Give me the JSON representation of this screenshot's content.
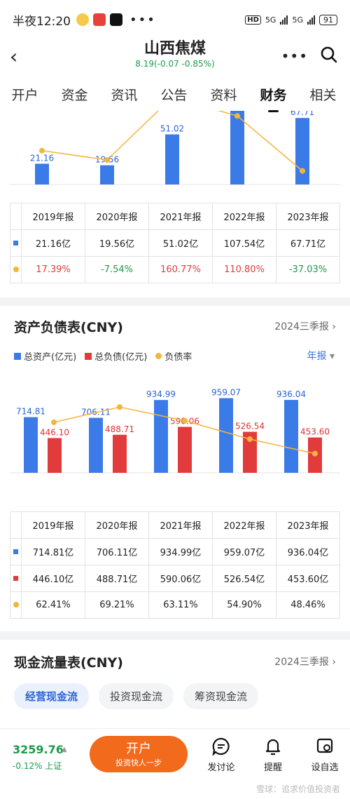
{
  "status_bar": {
    "time": "半夜12:20",
    "hd": "HD",
    "net1": "5G",
    "net2": "5G",
    "battery": "91"
  },
  "header": {
    "title": "山西焦煤",
    "quote": "8.19(-0.07 -0.85%)"
  },
  "tabs": [
    "开户",
    "资金",
    "资讯",
    "公告",
    "资料",
    "财务",
    "相关"
  ],
  "active_tab": "财务",
  "profit_table": {
    "years": [
      "2019年报",
      "2020年报",
      "2021年报",
      "2022年报",
      "2023年报"
    ],
    "values": [
      "21.16亿",
      "19.56亿",
      "51.02亿",
      "107.54亿",
      "67.71亿"
    ],
    "growth": [
      "17.39%",
      "-7.54%",
      "160.77%",
      "110.80%",
      "-37.03%"
    ]
  },
  "balance": {
    "title": "资产负债表(CNY)",
    "period": "2024三季报",
    "legend": [
      "总资产(亿元)",
      "总负债(亿元)",
      "负债率"
    ],
    "period_select": "年报",
    "years": [
      "2019年报",
      "2020年报",
      "2021年报",
      "2022年报",
      "2023年报"
    ],
    "assets": [
      "714.81亿",
      "706.11亿",
      "934.99亿",
      "959.07亿",
      "936.04亿"
    ],
    "liabilities": [
      "446.10亿",
      "488.71亿",
      "590.06亿",
      "526.54亿",
      "453.60亿"
    ],
    "ratio": [
      "62.41%",
      "69.21%",
      "63.11%",
      "54.90%",
      "48.46%"
    ]
  },
  "cashflow": {
    "title": "现金流量表(CNY)",
    "period": "2024三季报",
    "tabs": [
      "经营现金流",
      "投资现金流",
      "筹资现金流"
    ]
  },
  "bottom_bar": {
    "index_value": "3259.76",
    "index_change": "-0.12% 上证",
    "open_label": "开户",
    "open_sub": "投资快人一步",
    "discuss": "发讨论",
    "remind": "提醒",
    "watchlist": "设自选",
    "watermark": "雪球：追求价值投资者"
  },
  "colors": {
    "blue": "#3b7be8",
    "red": "#e23b3b",
    "orange": "#f3b63b",
    "green": "#1a9b4b",
    "accent_orange": "#f26a1b"
  },
  "chart_data": [
    {
      "type": "bar",
      "categories": [
        "2019年报",
        "2020年报",
        "2021年报",
        "2022年报",
        "2023年报"
      ],
      "series": [
        {
          "values": [
            21.16,
            19.56,
            51.02,
            107.54,
            67.71
          ]
        },
        {
          "type": "line",
          "values": [
            17.39,
            -7.54,
            160.77,
            110.8,
            -37.03
          ]
        }
      ],
      "bar_labels": [
        "21.16",
        "19.56",
        "51.02",
        "",
        "67.71"
      ]
    },
    {
      "type": "bar",
      "title": "资产负债表(CNY)",
      "categories": [
        "2019年报",
        "2020年报",
        "2021年报",
        "2022年报",
        "2023年报"
      ],
      "series": [
        {
          "name": "总资产(亿元)",
          "values": [
            714.81,
            706.11,
            934.99,
            959.07,
            936.04
          ]
        },
        {
          "name": "总负债(亿元)",
          "values": [
            446.1,
            488.71,
            590.06,
            526.54,
            453.6
          ]
        },
        {
          "name": "负债率",
          "type": "line",
          "values": [
            62.41,
            69.21,
            63.11,
            54.9,
            48.46
          ]
        }
      ],
      "asset_labels": [
        "714.81",
        "706.11",
        "934.99",
        "959.07",
        "936.04"
      ],
      "liability_labels": [
        "446.10",
        "488.71",
        "590.06",
        "526.54",
        "453.60"
      ]
    }
  ]
}
